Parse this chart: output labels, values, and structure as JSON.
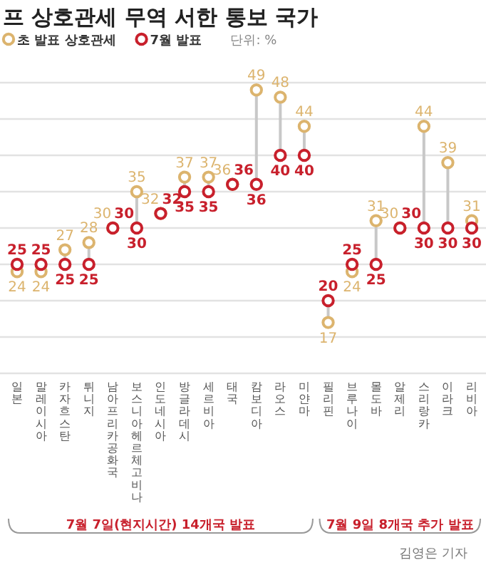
{
  "chart_data": {
    "type": "scatter",
    "title": "프 상호관세 무역 서한 통보 국가",
    "categories": [
      "일본",
      "말레이시아",
      "카자흐스탄",
      "튀니지",
      "남아프리카공화국",
      "보스니아헤르체고비나",
      "인도네시아",
      "방글라데시",
      "세르비아",
      "태국",
      "캄보디아",
      "라오스",
      "미얀마",
      "필리핀",
      "브루나이",
      "몰도바",
      "알제리",
      "스리랑카",
      "이라크",
      "리비아"
    ],
    "series": [
      {
        "name": "초 발표 상호관세",
        "color": "#dcb46e",
        "values": [
          24,
          24,
          27,
          28,
          30,
          35,
          32,
          37,
          37,
          36,
          49,
          48,
          44,
          17,
          24,
          31,
          30,
          44,
          39,
          31
        ]
      },
      {
        "name": "7월 발표",
        "color": "#c8202c",
        "values": [
          25,
          25,
          25,
          25,
          30,
          30,
          32,
          35,
          35,
          36,
          36,
          40,
          40,
          20,
          25,
          25,
          30,
          30,
          30,
          30
        ]
      }
    ],
    "ylim": [
      10,
      50
    ],
    "yticks": [
      {
        "value": 10,
        "label": null
      },
      {
        "value": 15,
        "label": null
      },
      {
        "value": 20,
        "label": null
      },
      {
        "value": 25,
        "label": null
      },
      {
        "value": 30,
        "label": null
      },
      {
        "value": 35,
        "label": null
      },
      {
        "value": 40,
        "label": null
      },
      {
        "value": 45,
        "label": null
      },
      {
        "value": 50,
        "label": null
      }
    ],
    "tick_labels": "x",
    "grid": "y",
    "marker": "circle",
    "data_labels": true,
    "legend": "top left",
    "annotations": [
      "단위: %",
      "7월 7일(현지시간) 14개국 발표",
      "7월 9일 8개국 추가 발표",
      "김영은 기자"
    ]
  }
}
